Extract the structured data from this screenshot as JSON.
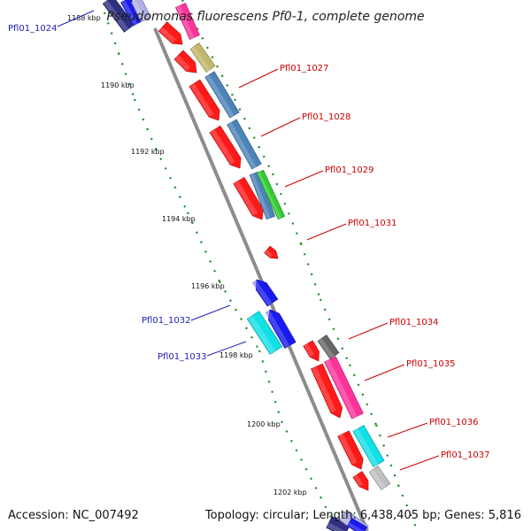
{
  "title": "Pseudomonas fluorescens Pf0-1, complete genome",
  "footer": {
    "accession": "Accession: NC_007492",
    "summary": "Topology: circular; Length: 6,438,405 bp; Genes: 5,816"
  },
  "ticks": [
    {
      "label": "1188 kbp"
    },
    {
      "label": "1190 kbp"
    },
    {
      "label": "1192 kbp"
    },
    {
      "label": "1194 kbp"
    },
    {
      "label": "1196 kbp"
    },
    {
      "label": "1198 kbp"
    },
    {
      "label": "1200 kbp"
    },
    {
      "label": "1202 kbp"
    }
  ],
  "gene_labels": [
    {
      "label": "Pfl01_1024",
      "color": "#1f1fb4"
    },
    {
      "label": "Pfl01_1027",
      "color": "#cc0000"
    },
    {
      "label": "Pfl01_1028",
      "color": "#cc0000"
    },
    {
      "label": "Pfl01_1029",
      "color": "#cc0000"
    },
    {
      "label": "Pfl01_1031",
      "color": "#cc0000"
    },
    {
      "label": "Pfl01_1032",
      "color": "#1f1fb4"
    },
    {
      "label": "Pfl01_1033",
      "color": "#1f1fb4"
    },
    {
      "label": "Pfl01_1034",
      "color": "#cc0000"
    },
    {
      "label": "Pfl01_1035",
      "color": "#cc0000"
    },
    {
      "label": "Pfl01_1036",
      "color": "#cc0000"
    },
    {
      "label": "Pfl01_1037",
      "color": "#cc0000"
    }
  ],
  "colors": {
    "backbone": "#8c8c8c",
    "dots": "#1a8a1a",
    "cds_forward": "#ff1a1a",
    "cds_reverse": "#1a1aee",
    "pink": "#ff3399",
    "olive": "#c2b76a",
    "steelblue": "#4d84b8",
    "green": "#33cc33",
    "cyan": "#11e0e6",
    "darkgray": "#666666",
    "lightgray": "#c0c0c0",
    "lavender": "#b0b0e6",
    "navy": "#2e2e82"
  }
}
